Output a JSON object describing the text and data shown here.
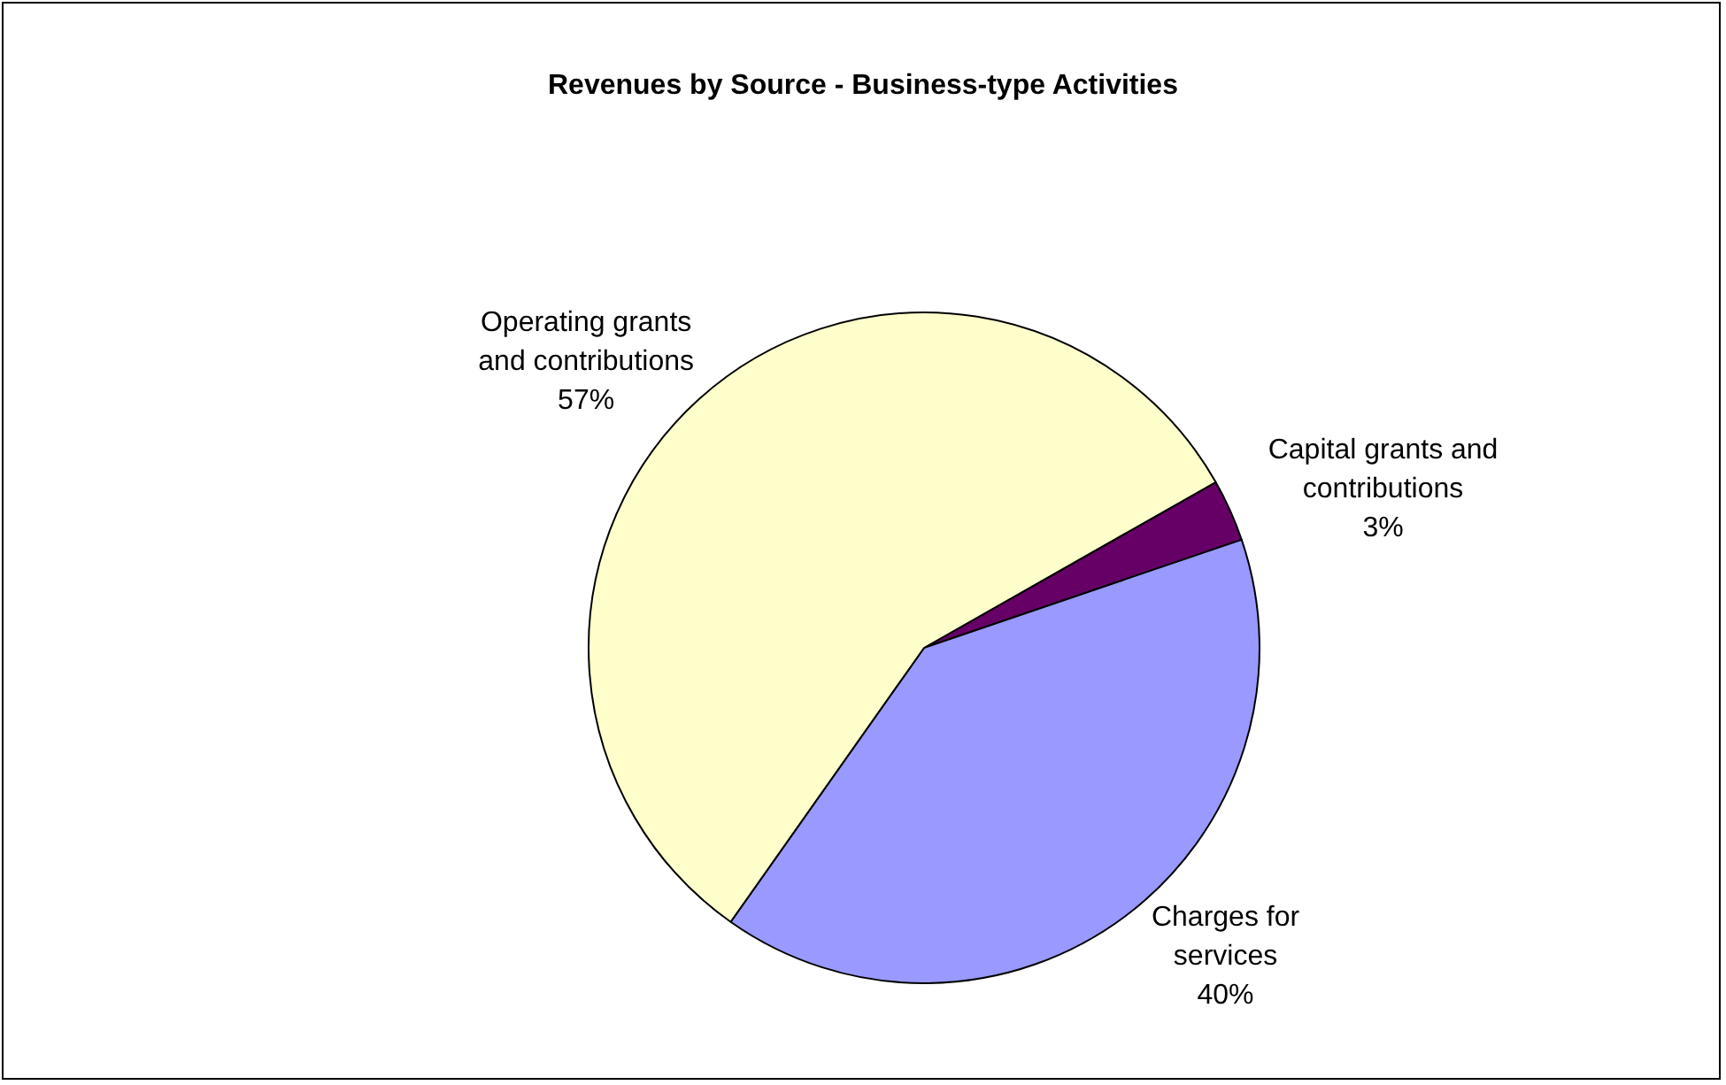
{
  "chart_data": {
    "type": "pie",
    "title": "Revenues by Source - Business-type Activities",
    "categories": [
      "Capital grants and contributions",
      "Charges for services",
      "Operating grants and contributions"
    ],
    "values": [
      3,
      40,
      57
    ],
    "colors": [
      "#660066",
      "#9999ff",
      "#ffffcc"
    ],
    "value_labels": [
      "3%",
      "40%",
      "57%"
    ],
    "legend": false
  }
}
